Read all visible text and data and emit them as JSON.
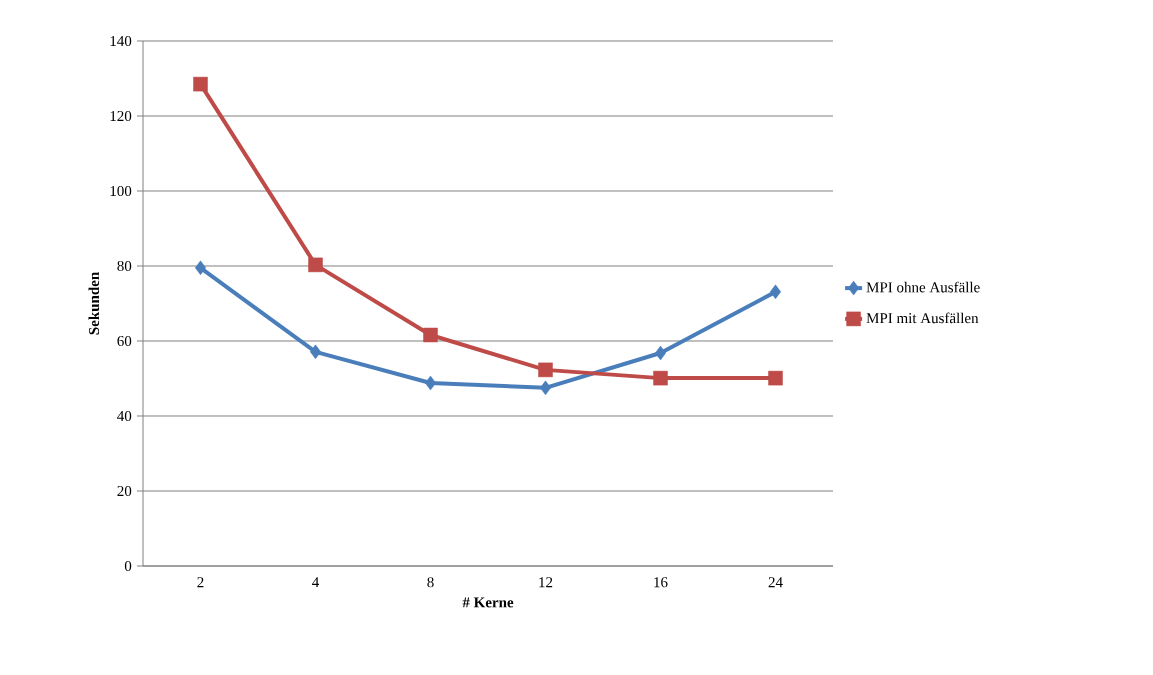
{
  "chart_data": {
    "type": "line",
    "xlabel": "# Kerne",
    "ylabel": "Sekunden",
    "categories": [
      "2",
      "4",
      "8",
      "12",
      "16",
      "24"
    ],
    "series": [
      {
        "name": "MPI ohne Ausfälle",
        "color": "#4a7ebb",
        "marker": "diamond",
        "values": [
          79.5,
          57.1,
          48.8,
          47.5,
          56.8,
          73.1
        ]
      },
      {
        "name": "MPI mit Ausfällen",
        "color": "#be4b48",
        "marker": "square",
        "values": [
          128.5,
          80.3,
          61.6,
          52.3,
          50.1,
          50.1
        ]
      }
    ],
    "ylim": [
      0,
      140
    ],
    "yticks": [
      0,
      20,
      40,
      60,
      80,
      100,
      120,
      140
    ],
    "grid": "y",
    "legend": "right",
    "line_style": "solid"
  }
}
